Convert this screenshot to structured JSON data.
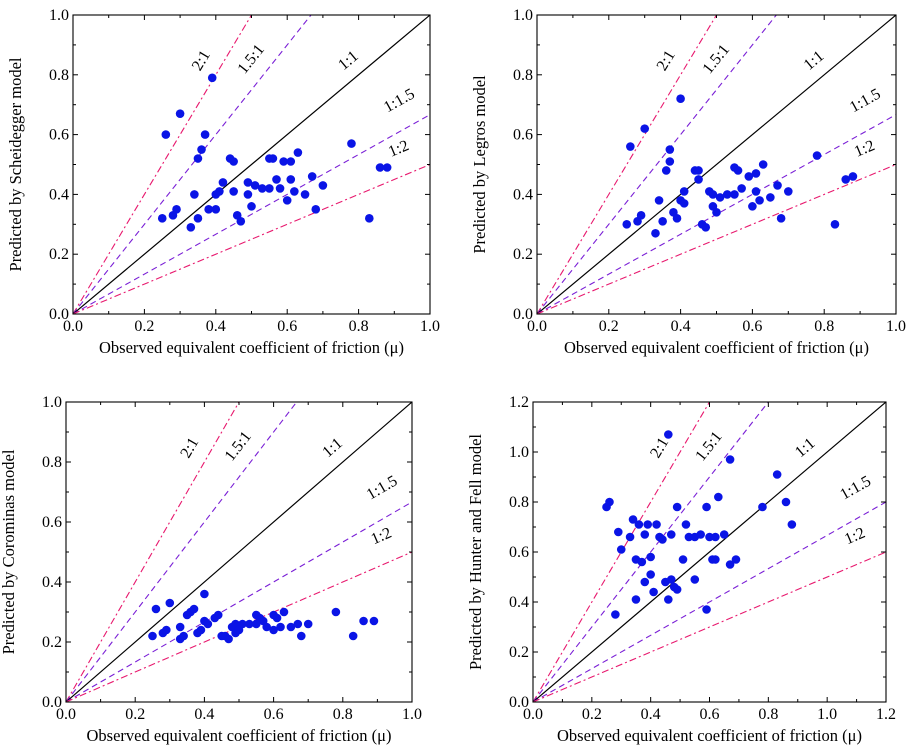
{
  "chart_data": [
    {
      "type": "scatter",
      "xlabel": "Observed equivalent coefficient of friction (μ)",
      "ylabel": "Predicted by Scheidegger model",
      "xlim": [
        0,
        1.0
      ],
      "ylim": [
        0,
        1.0
      ],
      "xticks": [
        "0.0",
        "0.2",
        "0.4",
        "0.6",
        "0.8",
        "1.0"
      ],
      "yticks": [
        "0.0",
        "0.2",
        "0.4",
        "0.6",
        "0.8",
        "1.0"
      ],
      "grid": false,
      "reference_lines": [
        {
          "label": "2:1",
          "slope": 2,
          "color": "#e8196e",
          "style": "dash-dot"
        },
        {
          "label": "1.5:1",
          "slope": 1.5,
          "color": "#7a1fd6",
          "style": "dashed"
        },
        {
          "label": "1:1",
          "slope": 1,
          "color": "#000000",
          "style": "solid"
        },
        {
          "label": "1:1.5",
          "slope": 0.6667,
          "color": "#7a1fd6",
          "style": "dashed"
        },
        {
          "label": "1:2",
          "slope": 0.5,
          "color": "#e8196e",
          "style": "dash-dot"
        }
      ],
      "series": [
        {
          "color": "#0a14e6",
          "points": [
            [
              0.25,
              0.32
            ],
            [
              0.26,
              0.6
            ],
            [
              0.28,
              0.33
            ],
            [
              0.29,
              0.35
            ],
            [
              0.3,
              0.67
            ],
            [
              0.33,
              0.29
            ],
            [
              0.34,
              0.4
            ],
            [
              0.35,
              0.52
            ],
            [
              0.36,
              0.55
            ],
            [
              0.37,
              0.6
            ],
            [
              0.35,
              0.32
            ],
            [
              0.38,
              0.35
            ],
            [
              0.39,
              0.79
            ],
            [
              0.4,
              0.4
            ],
            [
              0.41,
              0.41
            ],
            [
              0.42,
              0.44
            ],
            [
              0.4,
              0.35
            ],
            [
              0.44,
              0.52
            ],
            [
              0.45,
              0.51
            ],
            [
              0.45,
              0.41
            ],
            [
              0.46,
              0.33
            ],
            [
              0.47,
              0.31
            ],
            [
              0.49,
              0.44
            ],
            [
              0.49,
              0.4
            ],
            [
              0.5,
              0.36
            ],
            [
              0.51,
              0.43
            ],
            [
              0.53,
              0.42
            ],
            [
              0.55,
              0.52
            ],
            [
              0.55,
              0.42
            ],
            [
              0.56,
              0.52
            ],
            [
              0.57,
              0.45
            ],
            [
              0.58,
              0.42
            ],
            [
              0.59,
              0.51
            ],
            [
              0.6,
              0.38
            ],
            [
              0.61,
              0.45
            ],
            [
              0.61,
              0.51
            ],
            [
              0.62,
              0.41
            ],
            [
              0.63,
              0.54
            ],
            [
              0.65,
              0.4
            ],
            [
              0.67,
              0.46
            ],
            [
              0.68,
              0.35
            ],
            [
              0.7,
              0.43
            ],
            [
              0.78,
              0.57
            ],
            [
              0.83,
              0.32
            ],
            [
              0.86,
              0.49
            ],
            [
              0.88,
              0.49
            ]
          ]
        }
      ]
    },
    {
      "type": "scatter",
      "xlabel": "Observed equivalent coefficient of friction (μ)",
      "ylabel": "Predicted by Legros model",
      "xlim": [
        0,
        1.0
      ],
      "ylim": [
        0,
        1.0
      ],
      "xticks": [
        "0.0",
        "0.2",
        "0.4",
        "0.6",
        "0.8",
        "1.0"
      ],
      "yticks": [
        "0.0",
        "0.2",
        "0.4",
        "0.6",
        "0.8",
        "1.0"
      ],
      "grid": false,
      "reference_lines": [
        {
          "label": "2:1",
          "slope": 2,
          "color": "#e8196e",
          "style": "dash-dot"
        },
        {
          "label": "1.5:1",
          "slope": 1.5,
          "color": "#7a1fd6",
          "style": "dashed"
        },
        {
          "label": "1:1",
          "slope": 1,
          "color": "#000000",
          "style": "solid"
        },
        {
          "label": "1:1.5",
          "slope": 0.6667,
          "color": "#7a1fd6",
          "style": "dashed"
        },
        {
          "label": "1:2",
          "slope": 0.5,
          "color": "#e8196e",
          "style": "dash-dot"
        }
      ],
      "series": [
        {
          "color": "#0a14e6",
          "points": [
            [
              0.25,
              0.3
            ],
            [
              0.26,
              0.56
            ],
            [
              0.28,
              0.31
            ],
            [
              0.29,
              0.33
            ],
            [
              0.3,
              0.62
            ],
            [
              0.33,
              0.27
            ],
            [
              0.34,
              0.38
            ],
            [
              0.35,
              0.31
            ],
            [
              0.36,
              0.48
            ],
            [
              0.37,
              0.51
            ],
            [
              0.37,
              0.55
            ],
            [
              0.38,
              0.34
            ],
            [
              0.39,
              0.32
            ],
            [
              0.4,
              0.72
            ],
            [
              0.4,
              0.38
            ],
            [
              0.41,
              0.41
            ],
            [
              0.41,
              0.37
            ],
            [
              0.44,
              0.48
            ],
            [
              0.45,
              0.48
            ],
            [
              0.45,
              0.45
            ],
            [
              0.46,
              0.3
            ],
            [
              0.47,
              0.29
            ],
            [
              0.48,
              0.41
            ],
            [
              0.49,
              0.36
            ],
            [
              0.49,
              0.4
            ],
            [
              0.5,
              0.34
            ],
            [
              0.51,
              0.39
            ],
            [
              0.53,
              0.4
            ],
            [
              0.55,
              0.49
            ],
            [
              0.55,
              0.4
            ],
            [
              0.56,
              0.48
            ],
            [
              0.57,
              0.42
            ],
            [
              0.59,
              0.46
            ],
            [
              0.6,
              0.36
            ],
            [
              0.61,
              0.47
            ],
            [
              0.61,
              0.41
            ],
            [
              0.62,
              0.38
            ],
            [
              0.63,
              0.5
            ],
            [
              0.65,
              0.39
            ],
            [
              0.67,
              0.43
            ],
            [
              0.68,
              0.32
            ],
            [
              0.7,
              0.41
            ],
            [
              0.78,
              0.53
            ],
            [
              0.83,
              0.3
            ],
            [
              0.86,
              0.45
            ],
            [
              0.88,
              0.46
            ]
          ]
        }
      ]
    },
    {
      "type": "scatter",
      "xlabel": "Observed equivalent coefficient of friction (μ)",
      "ylabel": "Predicted by Corominas model",
      "xlim": [
        0,
        1.0
      ],
      "ylim": [
        0,
        1.0
      ],
      "xticks": [
        "0.0",
        "0.2",
        "0.4",
        "0.6",
        "0.8",
        "1.0"
      ],
      "yticks": [
        "0.0",
        "0.2",
        "0.4",
        "0.6",
        "0.8",
        "1.0"
      ],
      "grid": false,
      "reference_lines": [
        {
          "label": "2:1",
          "slope": 2,
          "color": "#e8196e",
          "style": "dash-dot"
        },
        {
          "label": "1.5:1",
          "slope": 1.5,
          "color": "#7a1fd6",
          "style": "dashed"
        },
        {
          "label": "1:1",
          "slope": 1,
          "color": "#000000",
          "style": "solid"
        },
        {
          "label": "1:1.5",
          "slope": 0.6667,
          "color": "#7a1fd6",
          "style": "dashed"
        },
        {
          "label": "1:2",
          "slope": 0.5,
          "color": "#e8196e",
          "style": "dash-dot"
        }
      ],
      "series": [
        {
          "color": "#0a14e6",
          "points": [
            [
              0.25,
              0.22
            ],
            [
              0.26,
              0.31
            ],
            [
              0.28,
              0.23
            ],
            [
              0.29,
              0.24
            ],
            [
              0.3,
              0.33
            ],
            [
              0.33,
              0.21
            ],
            [
              0.33,
              0.25
            ],
            [
              0.34,
              0.22
            ],
            [
              0.35,
              0.29
            ],
            [
              0.36,
              0.3
            ],
            [
              0.37,
              0.31
            ],
            [
              0.38,
              0.23
            ],
            [
              0.39,
              0.24
            ],
            [
              0.4,
              0.36
            ],
            [
              0.4,
              0.27
            ],
            [
              0.41,
              0.26
            ],
            [
              0.43,
              0.28
            ],
            [
              0.44,
              0.29
            ],
            [
              0.45,
              0.22
            ],
            [
              0.46,
              0.22
            ],
            [
              0.47,
              0.21
            ],
            [
              0.48,
              0.25
            ],
            [
              0.49,
              0.26
            ],
            [
              0.49,
              0.23
            ],
            [
              0.5,
              0.24
            ],
            [
              0.51,
              0.26
            ],
            [
              0.53,
              0.26
            ],
            [
              0.55,
              0.29
            ],
            [
              0.55,
              0.26
            ],
            [
              0.56,
              0.28
            ],
            [
              0.57,
              0.27
            ],
            [
              0.58,
              0.25
            ],
            [
              0.6,
              0.29
            ],
            [
              0.6,
              0.24
            ],
            [
              0.61,
              0.28
            ],
            [
              0.62,
              0.25
            ],
            [
              0.63,
              0.3
            ],
            [
              0.65,
              0.25
            ],
            [
              0.67,
              0.26
            ],
            [
              0.68,
              0.22
            ],
            [
              0.7,
              0.26
            ],
            [
              0.78,
              0.3
            ],
            [
              0.83,
              0.22
            ],
            [
              0.86,
              0.27
            ],
            [
              0.89,
              0.27
            ]
          ]
        }
      ]
    },
    {
      "type": "scatter",
      "xlabel": "Observed equivalent coefficient of friction (μ)",
      "ylabel": "Predicted by Hunter and Fell model",
      "xlim": [
        0,
        1.2
      ],
      "ylim": [
        0,
        1.2
      ],
      "xticks": [
        "0.0",
        "0.2",
        "0.4",
        "0.6",
        "0.8",
        "1.0",
        "1.2"
      ],
      "yticks": [
        "0.0",
        "0.2",
        "0.4",
        "0.6",
        "0.8",
        "1.0",
        "1.2"
      ],
      "grid": false,
      "reference_lines": [
        {
          "label": "2:1",
          "slope": 2,
          "color": "#e8196e",
          "style": "dash-dot"
        },
        {
          "label": "1.5:1",
          "slope": 1.5,
          "color": "#7a1fd6",
          "style": "dashed"
        },
        {
          "label": "1:1",
          "slope": 1,
          "color": "#000000",
          "style": "solid"
        },
        {
          "label": "1:1.5",
          "slope": 0.6667,
          "color": "#7a1fd6",
          "style": "dashed"
        },
        {
          "label": "1:2",
          "slope": 0.5,
          "color": "#e8196e",
          "style": "dash-dot"
        }
      ],
      "series": [
        {
          "color": "#0a14e6",
          "points": [
            [
              0.25,
              0.78
            ],
            [
              0.26,
              0.8
            ],
            [
              0.28,
              0.35
            ],
            [
              0.29,
              0.68
            ],
            [
              0.3,
              0.61
            ],
            [
              0.33,
              0.66
            ],
            [
              0.34,
              0.73
            ],
            [
              0.35,
              0.57
            ],
            [
              0.35,
              0.41
            ],
            [
              0.36,
              0.71
            ],
            [
              0.37,
              0.56
            ],
            [
              0.38,
              0.67
            ],
            [
              0.38,
              0.48
            ],
            [
              0.39,
              0.71
            ],
            [
              0.4,
              0.58
            ],
            [
              0.4,
              0.51
            ],
            [
              0.41,
              0.44
            ],
            [
              0.42,
              0.71
            ],
            [
              0.43,
              0.66
            ],
            [
              0.44,
              0.65
            ],
            [
              0.45,
              0.48
            ],
            [
              0.46,
              1.07
            ],
            [
              0.46,
              0.41
            ],
            [
              0.47,
              0.67
            ],
            [
              0.47,
              0.49
            ],
            [
              0.48,
              0.46
            ],
            [
              0.49,
              0.78
            ],
            [
              0.49,
              0.45
            ],
            [
              0.51,
              0.57
            ],
            [
              0.52,
              0.71
            ],
            [
              0.53,
              0.66
            ],
            [
              0.55,
              0.66
            ],
            [
              0.55,
              0.49
            ],
            [
              0.57,
              0.67
            ],
            [
              0.59,
              0.37
            ],
            [
              0.59,
              0.78
            ],
            [
              0.6,
              0.66
            ],
            [
              0.61,
              0.57
            ],
            [
              0.62,
              0.66
            ],
            [
              0.62,
              0.57
            ],
            [
              0.63,
              0.82
            ],
            [
              0.65,
              0.67
            ],
            [
              0.67,
              0.97
            ],
            [
              0.67,
              0.55
            ],
            [
              0.69,
              0.57
            ],
            [
              0.78,
              0.78
            ],
            [
              0.83,
              0.91
            ],
            [
              0.86,
              0.8
            ],
            [
              0.88,
              0.71
            ]
          ]
        }
      ]
    }
  ]
}
